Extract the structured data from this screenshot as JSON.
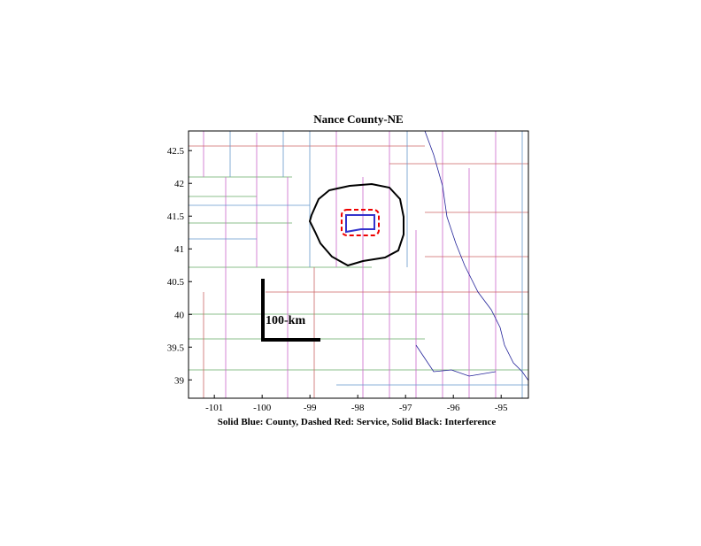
{
  "chart_data": {
    "type": "map",
    "title": "Nance County-NE",
    "xlabel": "Solid Blue: County, Dashed Red: Service, Solid Black: Interference",
    "xlim": [
      -101.54,
      -94.43
    ],
    "ylim": [
      38.72,
      42.8
    ],
    "xticks": [
      -101,
      -100,
      -99,
      -98,
      -97,
      -96,
      -95
    ],
    "yticks": [
      39,
      39.5,
      40,
      40.5,
      41,
      41.5,
      42,
      42.5
    ],
    "scale_label": "100-km"
  }
}
